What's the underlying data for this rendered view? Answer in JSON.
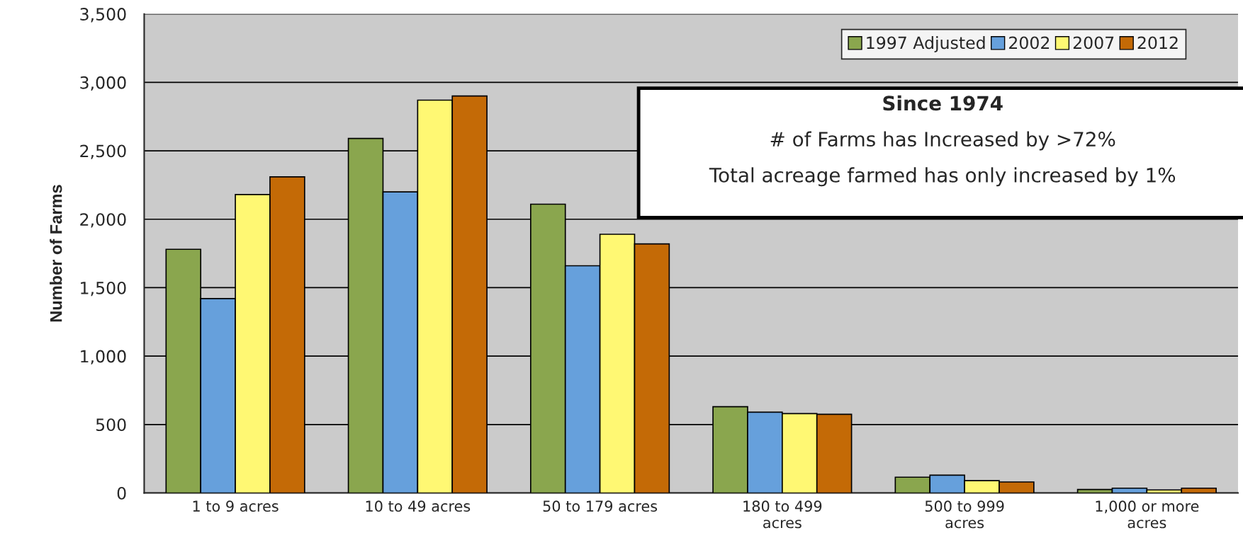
{
  "chart_data": {
    "type": "bar",
    "ylabel": "Number of Farms",
    "categories": [
      "1 to 9 acres",
      "10 to 49 acres",
      "50 to 179 acres",
      "180 to 499\nacres",
      "500 to 999\nacres",
      "1,000 or more\nacres"
    ],
    "series": [
      {
        "name": "1997 Adjusted",
        "color": "#8aa64e",
        "values": [
          1780,
          2590,
          2110,
          630,
          115,
          25
        ]
      },
      {
        "name": "2002",
        "color": "#66a0dc",
        "values": [
          1420,
          2200,
          1660,
          590,
          130,
          35
        ]
      },
      {
        "name": "2007",
        "color": "#fff873",
        "values": [
          2180,
          2870,
          1890,
          580,
          90,
          22
        ]
      },
      {
        "name": "2012",
        "color": "#c46a06",
        "values": [
          2310,
          2900,
          1820,
          575,
          80,
          35
        ]
      }
    ],
    "ylim": [
      0,
      3500
    ],
    "yticks": [
      {
        "value": 0,
        "label": "0"
      },
      {
        "value": 500,
        "label": "500"
      },
      {
        "value": 1000,
        "label": "1,000"
      },
      {
        "value": 1500,
        "label": "1,500"
      },
      {
        "value": 2000,
        "label": "2,000"
      },
      {
        "value": 2500,
        "label": "2,500"
      },
      {
        "value": 3000,
        "label": "3,000"
      },
      {
        "value": 3500,
        "label": "3,500"
      }
    ],
    "grid": "y",
    "legend": "top right",
    "annotations": [
      "Since 1974",
      "# of Farms has Increased by >72%",
      "Total acreage farmed has only increased by 1%"
    ]
  }
}
